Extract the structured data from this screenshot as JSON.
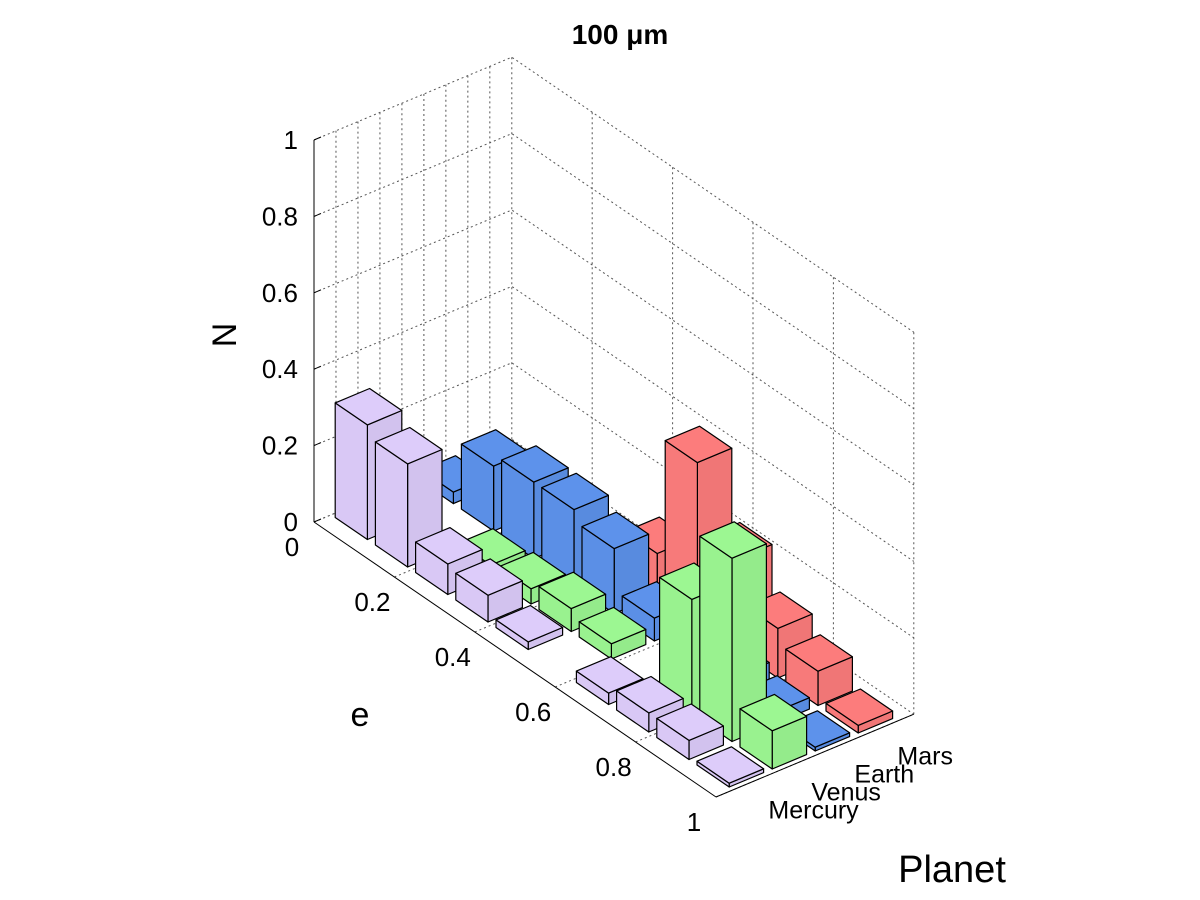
{
  "chart_data": {
    "type": "bar3d",
    "title": "100 μm",
    "zlabel": "N",
    "ylabel": "e",
    "xlabel": "Planet",
    "zlim": [
      0,
      1
    ],
    "z_ticks": [
      "0",
      "0.2",
      "0.4",
      "0.6",
      "0.8",
      "1"
    ],
    "e_ticks": [
      "0",
      "0.2",
      "0.4",
      "0.6",
      "0.8",
      "1"
    ],
    "planets": [
      "Mercury",
      "Venus",
      "Earth",
      "Mars"
    ],
    "e_bins": [
      0.05,
      0.15,
      0.25,
      0.35,
      0.45,
      0.55,
      0.65,
      0.75,
      0.85,
      0.95
    ],
    "grid": true,
    "series": [
      {
        "name": "Mercury",
        "color": "#d9c8f5",
        "values": [
          0.3,
          0.27,
          0.08,
          0.07,
          0.02,
          0.0,
          0.03,
          0.05,
          0.05,
          0.01
        ]
      },
      {
        "name": "Venus",
        "color": "#99f28f",
        "values": [
          0.0,
          0.0,
          0.03,
          0.04,
          0.06,
          0.04,
          0.0,
          0.3,
          0.48,
          0.1
        ]
      },
      {
        "name": "Earth",
        "color": "#5b8fe6",
        "values": [
          0.03,
          0.17,
          0.2,
          0.2,
          0.17,
          0.06,
          0.06,
          0.05,
          0.03,
          0.01
        ]
      },
      {
        "name": "Mars",
        "color": "#f77a7a",
        "values": [
          0.0,
          0.0,
          0.0,
          0.01,
          0.11,
          0.42,
          0.24,
          0.13,
          0.09,
          0.02
        ]
      }
    ]
  }
}
